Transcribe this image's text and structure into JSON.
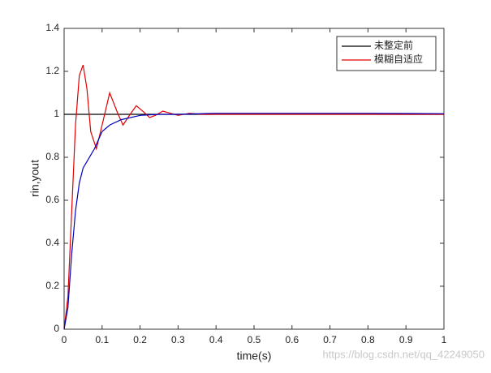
{
  "chart_data": {
    "type": "line",
    "xlabel": "time(s)",
    "ylabel": "rin,yout",
    "xlim": [
      0,
      1
    ],
    "xticks": [
      0,
      0.1,
      0.2,
      0.3,
      0.4,
      0.5,
      0.6,
      0.7,
      0.8,
      0.9,
      1
    ],
    "ylim": [
      0,
      1.4
    ],
    "yticks": [
      0,
      0.2,
      0.4,
      0.6,
      0.8,
      1,
      1.2,
      1.4
    ],
    "grid": false,
    "legend": "upper right",
    "series": [
      {
        "name": "未整定前",
        "color": "#000000",
        "x": [
          0,
          1
        ],
        "values": [
          1,
          1
        ]
      },
      {
        "name": "模糊自适应",
        "color": "#e00000",
        "x": [
          0,
          0.01,
          0.02,
          0.03,
          0.04,
          0.05,
          0.06,
          0.07,
          0.085,
          0.1,
          0.12,
          0.14,
          0.155,
          0.17,
          0.19,
          0.21,
          0.225,
          0.24,
          0.26,
          0.28,
          0.3,
          0.33,
          0.36,
          0.4,
          0.5,
          0.6,
          0.8,
          1
        ],
        "values": [
          0,
          0.15,
          0.55,
          0.95,
          1.18,
          1.23,
          1.12,
          0.92,
          0.84,
          0.95,
          1.1,
          1.01,
          0.95,
          0.99,
          1.04,
          1.01,
          0.985,
          0.995,
          1.015,
          1.005,
          0.995,
          1.005,
          1,
          1,
          1,
          1,
          1,
          1
        ]
      },
      {
        "color": "#0000c0",
        "x": [
          0,
          0.01,
          0.02,
          0.03,
          0.04,
          0.05,
          0.06,
          0.07,
          0.08,
          0.09,
          0.1,
          0.12,
          0.15,
          0.2,
          0.25,
          0.3,
          0.4,
          0.5,
          0.6,
          0.8,
          1
        ],
        "values": [
          0,
          0.1,
          0.35,
          0.55,
          0.68,
          0.75,
          0.78,
          0.81,
          0.84,
          0.88,
          0.92,
          0.95,
          0.975,
          0.995,
          1,
          1,
          1.005,
          1.005,
          1.005,
          1.005,
          1.003
        ]
      }
    ],
    "watermark": "https://blog.csdn.net/qq_42249050"
  }
}
